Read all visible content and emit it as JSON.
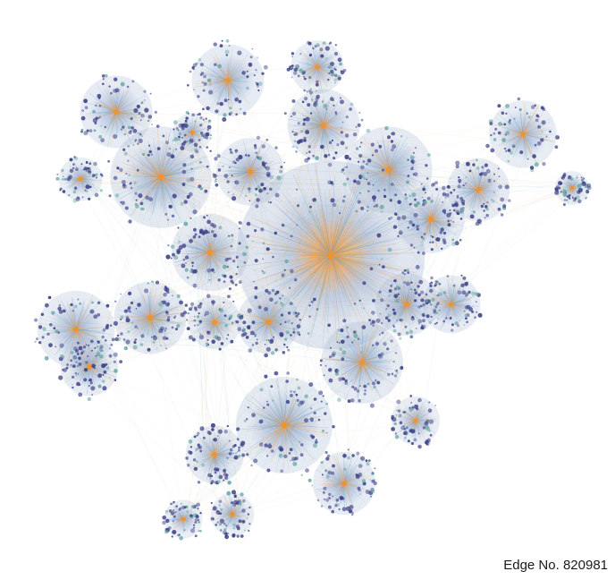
{
  "caption": "Edge No. 820981",
  "colors": {
    "hub_orange": "#f39229",
    "edge_orange": "#f3a55a",
    "edge_blue": "#7f9fcf",
    "edge_teal": "#6aa9a6",
    "node_navy": "#3c3f86",
    "background": "#ffffff"
  }
}
